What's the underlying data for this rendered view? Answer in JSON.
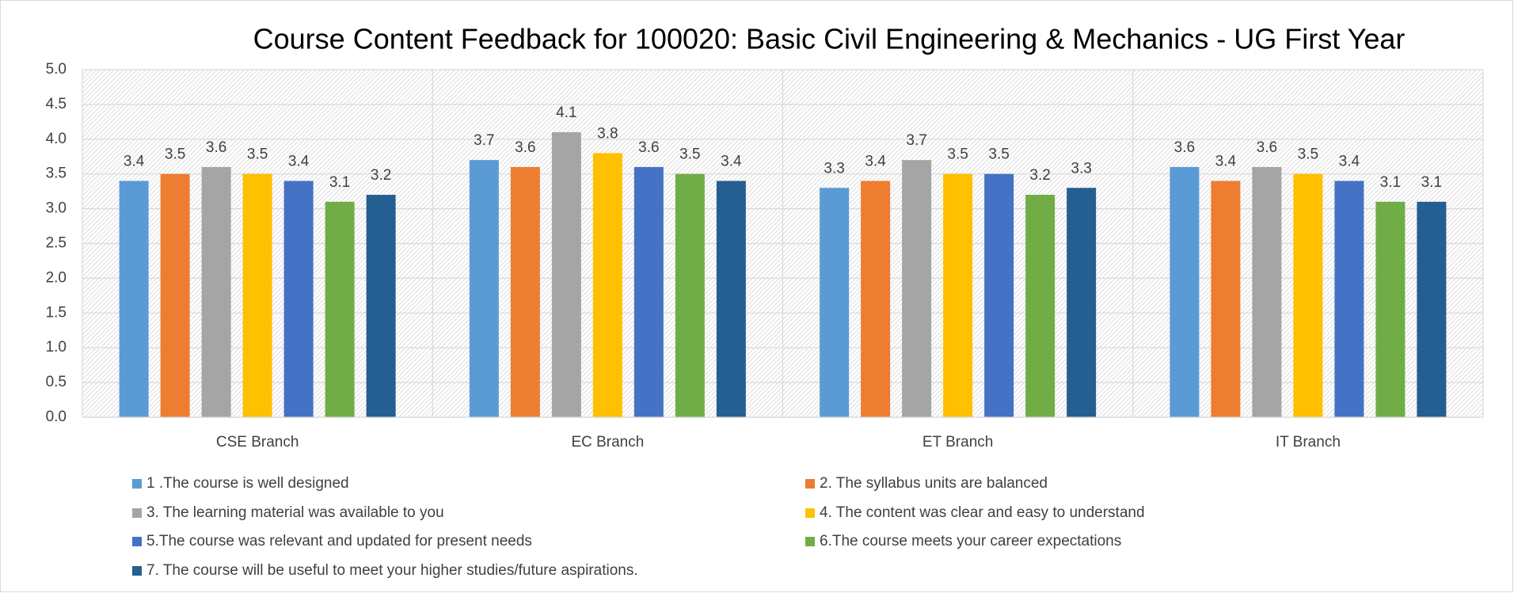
{
  "chart_data": {
    "type": "bar",
    "title": "Course Content Feedback for 100020: Basic Civil Engineering & Mechanics - UG First Year",
    "categories": [
      "CSE Branch",
      "EC Branch",
      "ET Branch",
      "IT Branch"
    ],
    "series": [
      {
        "name": "1 .The course is well designed",
        "color": "#5b9bd5",
        "values": [
          3.4,
          3.7,
          3.3,
          3.6
        ]
      },
      {
        "name": "2. The syllabus units are balanced",
        "color": "#ed7d31",
        "values": [
          3.5,
          3.6,
          3.4,
          3.4
        ]
      },
      {
        "name": "3. The learning material was available to you",
        "color": "#a5a5a5",
        "values": [
          3.6,
          4.1,
          3.7,
          3.6
        ]
      },
      {
        "name": "4. The content was clear and easy to understand",
        "color": "#ffc000",
        "values": [
          3.5,
          3.8,
          3.5,
          3.5
        ]
      },
      {
        "name": "5.The course was relevant and updated for present needs",
        "color": "#4472c4",
        "values": [
          3.4,
          3.6,
          3.5,
          3.4
        ]
      },
      {
        "name": "6.The course meets your career expectations",
        "color": "#70ad47",
        "values": [
          3.1,
          3.5,
          3.2,
          3.1
        ]
      },
      {
        "name": "7. The course will be useful to meet your higher studies/future aspirations.",
        "color": "#255e91",
        "values": [
          3.2,
          3.4,
          3.3,
          3.1
        ]
      }
    ],
    "ylim": [
      0,
      5
    ],
    "yticks": [
      {
        "value": 0,
        "label": "0.0"
      },
      0.5,
      {
        "value": 1,
        "label": "1.0"
      },
      1.5,
      {
        "value": 2,
        "label": "2.0"
      },
      2.5,
      {
        "value": 3,
        "label": "3.0"
      },
      3.5,
      {
        "value": 4,
        "label": "4.0"
      },
      4.5,
      {
        "value": 5,
        "label": "5.0"
      }
    ],
    "grid": true,
    "legend": "bottom"
  }
}
